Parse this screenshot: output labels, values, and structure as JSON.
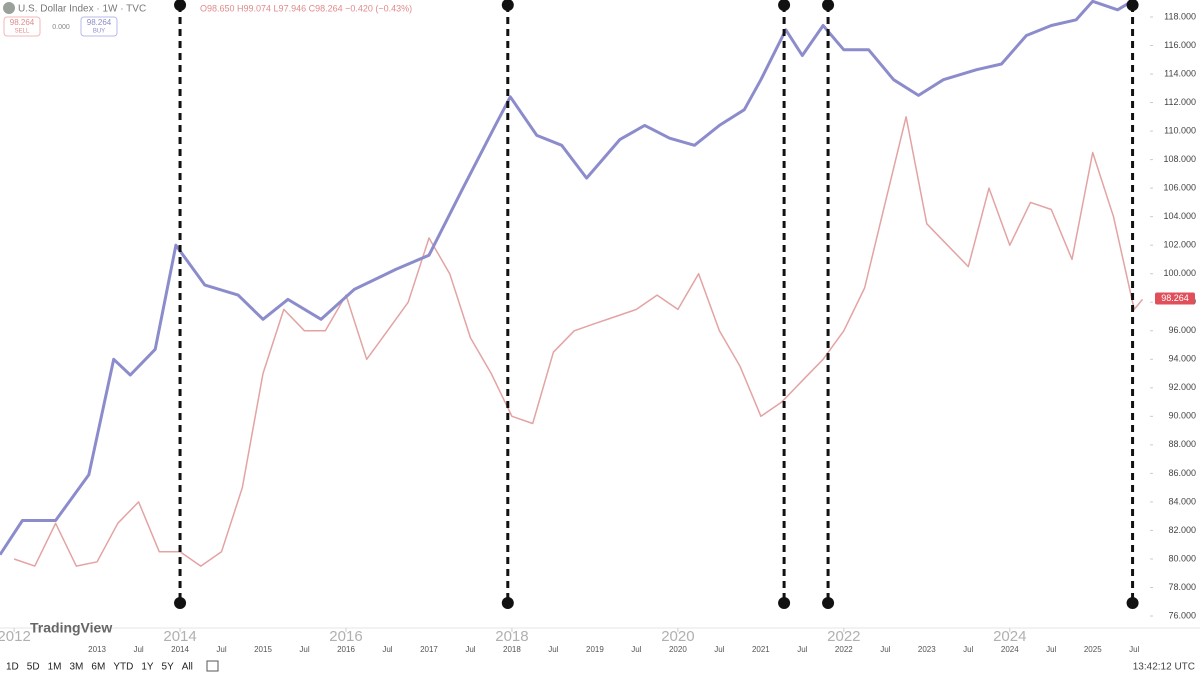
{
  "chart_data": {
    "type": "line",
    "title": "U.S. Dollar Index · 1W · TVC",
    "ohlc_text": "O98.650 H99.074 L97.946 C98.264 −0.420 (−0.43%)",
    "sell_price": "98.264",
    "sell_label": "SELL",
    "spread": "0.000",
    "buy_price": "98.264",
    "buy_label": "BUY",
    "brand": "TradingView",
    "last_price": 98.264,
    "time": "13:42:12 UTC",
    "ranges": [
      "1D",
      "5D",
      "1M",
      "3M",
      "6M",
      "YTD",
      "1Y",
      "5Y",
      "All"
    ],
    "xlim": [
      2011.83,
      2025.69
    ],
    "ylim": [
      75.16,
      119.19
    ],
    "xticks_major": [
      2012,
      2014,
      2016,
      2018,
      2020,
      2022,
      2024
    ],
    "xticks": [
      2013,
      {
        "value": 2013.5,
        "label": "Jul"
      },
      2014,
      {
        "value": 2014.5,
        "label": "Jul"
      },
      2015,
      {
        "value": 2015.5,
        "label": "Jul"
      },
      2016,
      {
        "value": 2016.5,
        "label": "Jul"
      },
      2017,
      {
        "value": 2017.5,
        "label": "Jul"
      },
      2018,
      {
        "value": 2018.5,
        "label": "Jul"
      },
      2019,
      {
        "value": 2019.5,
        "label": "Jul"
      },
      2020,
      {
        "value": 2020.5,
        "label": "Jul"
      },
      2021,
      {
        "value": 2021.5,
        "label": "Jul"
      },
      2022,
      {
        "value": 2022.5,
        "label": "Jul"
      },
      2023,
      {
        "value": 2023.5,
        "label": "Jul"
      },
      2024,
      {
        "value": 2024.5,
        "label": "Jul"
      },
      2025,
      {
        "value": 2025.5,
        "label": "Jul"
      }
    ],
    "yticks": [
      {
        "value": 76,
        "label": "76.000"
      },
      {
        "value": 78,
        "label": "78.000"
      },
      {
        "value": 80,
        "label": "80.000"
      },
      {
        "value": 82,
        "label": "82.000"
      },
      {
        "value": 84,
        "label": "84.000"
      },
      {
        "value": 86,
        "label": "86.000"
      },
      {
        "value": 88,
        "label": "88.000"
      },
      {
        "value": 90,
        "label": "90.000"
      },
      {
        "value": 92,
        "label": "92.000"
      },
      {
        "value": 94,
        "label": "94.000"
      },
      {
        "value": 96,
        "label": "96.000"
      },
      {
        "value": 98,
        "label": "98.000"
      },
      {
        "value": 100,
        "label": "100.000"
      },
      {
        "value": 102,
        "label": "102.000"
      },
      {
        "value": 104,
        "label": "104.000"
      },
      {
        "value": 106,
        "label": "106.000"
      },
      {
        "value": 108,
        "label": "108.000"
      },
      {
        "value": 110,
        "label": "110.000"
      },
      {
        "value": 112,
        "label": "112.000"
      },
      {
        "value": 114,
        "label": "114.000"
      },
      {
        "value": 116,
        "label": "116.000"
      },
      {
        "value": 118,
        "label": "118.000"
      }
    ],
    "vlines": [
      2014.0,
      2017.95,
      2021.28,
      2021.81,
      2025.48
    ],
    "series": [
      {
        "color": "#e3a3a3",
        "x": [
          2012.0,
          2012.25,
          2012.5,
          2012.75,
          2013.0,
          2013.25,
          2013.5,
          2013.75,
          2014.0,
          2014.25,
          2014.5,
          2014.75,
          2015.0,
          2015.25,
          2015.5,
          2015.75,
          2016.0,
          2016.25,
          2016.5,
          2016.75,
          2017.0,
          2017.25,
          2017.5,
          2017.75,
          2018.0,
          2018.25,
          2018.5,
          2018.75,
          2019.0,
          2019.25,
          2019.5,
          2019.75,
          2020.0,
          2020.25,
          2020.5,
          2020.75,
          2021.0,
          2021.25,
          2021.5,
          2021.75,
          2022.0,
          2022.25,
          2022.5,
          2022.75,
          2023.0,
          2023.25,
          2023.5,
          2023.75,
          2024.0,
          2024.25,
          2024.5,
          2024.75,
          2025.0,
          2025.25,
          2025.5,
          2025.6
        ],
        "values": [
          80,
          79.5,
          82.5,
          79.5,
          79.8,
          82.5,
          84,
          80.5,
          80.5,
          79.5,
          80.5,
          85,
          93,
          97.5,
          96,
          96,
          98.5,
          94,
          96,
          98,
          102.5,
          100,
          95.5,
          93,
          90,
          89.5,
          94.5,
          96,
          96.5,
          97,
          97.5,
          98.5,
          97.5,
          100,
          96,
          93.5,
          90,
          91,
          92.5,
          94,
          96,
          99,
          105,
          111,
          103.5,
          102,
          100.5,
          106,
          102,
          105,
          104.5,
          101,
          108.5,
          104,
          97.5,
          98.2
        ]
      },
      {
        "color": "#8c8ccc",
        "x": [
          2011.83,
          2012.1,
          2012.5,
          2012.9,
          2013.2,
          2013.4,
          2013.7,
          2013.95,
          2014.3,
          2014.7,
          2015.0,
          2015.3,
          2015.7,
          2016.1,
          2016.6,
          2017.0,
          2017.4,
          2017.8,
          2017.98,
          2018.3,
          2018.6,
          2018.9,
          2019.3,
          2019.6,
          2019.9,
          2020.2,
          2020.5,
          2020.8,
          2021.0,
          2021.3,
          2021.5,
          2021.75,
          2022.0,
          2022.3,
          2022.6,
          2022.9,
          2023.2,
          2023.6,
          2023.9,
          2024.2,
          2024.5,
          2024.8,
          2025.0,
          2025.3,
          2025.5
        ],
        "values": [
          80.3,
          82.7,
          82.7,
          85.9,
          94,
          92.9,
          94.7,
          102,
          99.2,
          98.5,
          96.8,
          98.2,
          96.8,
          98.9,
          100.3,
          101.3,
          105.9,
          110.4,
          112.4,
          109.7,
          109,
          106.7,
          109.4,
          110.4,
          109.5,
          109,
          110.4,
          111.5,
          113.6,
          117.1,
          115.3,
          117.4,
          115.7,
          115.7,
          113.6,
          112.5,
          113.6,
          114.3,
          114.7,
          116.7,
          117.4,
          117.8,
          119.1,
          118.5,
          119.2
        ]
      }
    ]
  }
}
